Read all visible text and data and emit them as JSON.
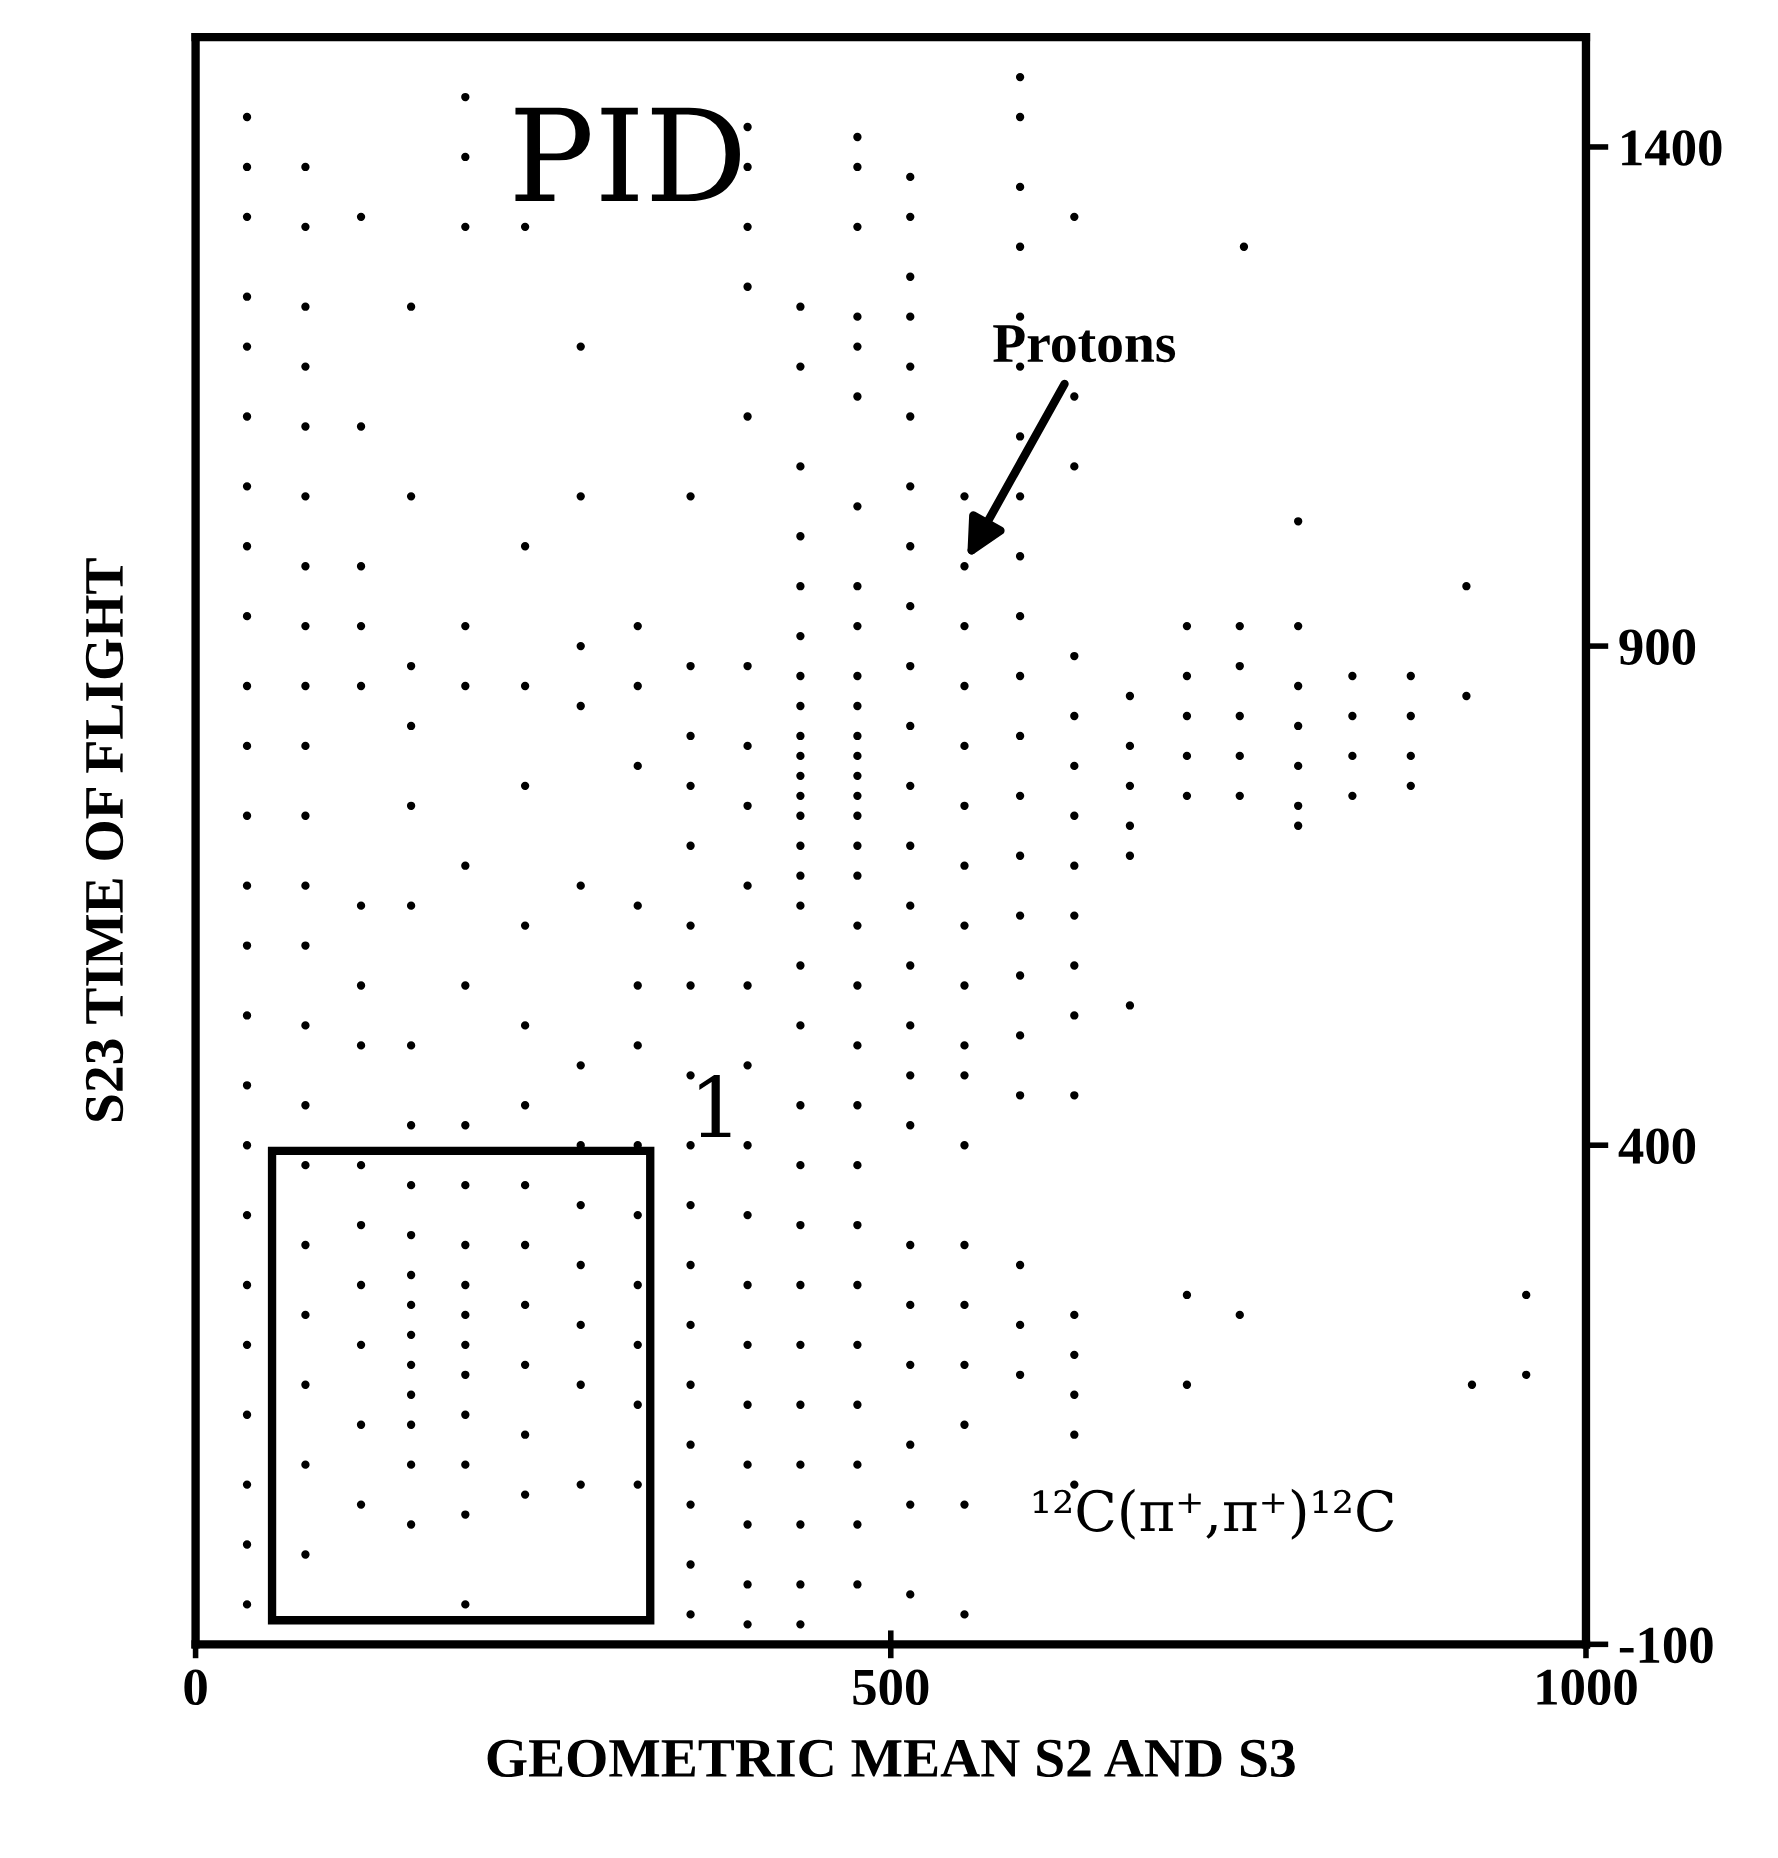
{
  "chart_data": {
    "type": "scatter",
    "xlabel": "GEOMETRIC MEAN S2 AND S3",
    "ylabel": "S23 TIME OF FLIGHT",
    "xlim": [
      0,
      1000
    ],
    "xticks": [
      0,
      500,
      1000
    ],
    "ylim": [
      -100,
      1510
    ],
    "yticks": [
      -100,
      400,
      900,
      1400
    ],
    "marker": "circle",
    "annotations": [
      "PID",
      "1",
      {
        "text": "Protons",
        "x": 553,
        "y": 983
      },
      "¹²C(π⁺,π⁺)¹²C"
    ],
    "series": [
      {
        "color": "#000000",
        "x": [
          37,
          37,
          37,
          37,
          37,
          37,
          37,
          37,
          37,
          37,
          37,
          37,
          37,
          37,
          37,
          37,
          37,
          37,
          37,
          37,
          37,
          37,
          37,
          37,
          79,
          79,
          79,
          79,
          79,
          79,
          79,
          79,
          79,
          79,
          79,
          79,
          79,
          79,
          79,
          79,
          79,
          79,
          79,
          79,
          79,
          119,
          119,
          119,
          119,
          119,
          119,
          119,
          119,
          119,
          119,
          119,
          119,
          119,
          119,
          155,
          155,
          155,
          155,
          155,
          155,
          155,
          155,
          155,
          155,
          155,
          155,
          155,
          155,
          155,
          155,
          155,
          155,
          194,
          194,
          194,
          194,
          194,
          194,
          194,
          194,
          194,
          194,
          194,
          194,
          194,
          194,
          194,
          194,
          194,
          194,
          237,
          237,
          237,
          237,
          237,
          237,
          237,
          237,
          237,
          237,
          237,
          237,
          237,
          277,
          277,
          277,
          277,
          277,
          277,
          277,
          277,
          277,
          277,
          277,
          277,
          318,
          318,
          318,
          318,
          318,
          318,
          318,
          318,
          318,
          318,
          318,
          318,
          356,
          356,
          356,
          356,
          356,
          356,
          356,
          356,
          356,
          356,
          356,
          356,
          356,
          356,
          356,
          356,
          356,
          397,
          397,
          397,
          397,
          397,
          397,
          397,
          397,
          397,
          397,
          397,
          397,
          397,
          397,
          397,
          397,
          397,
          397,
          397,
          397,
          435,
          435,
          435,
          435,
          435,
          435,
          435,
          435,
          435,
          435,
          435,
          435,
          435,
          435,
          435,
          435,
          435,
          435,
          435,
          435,
          435,
          435,
          435,
          435,
          435,
          435,
          435,
          435,
          476,
          476,
          476,
          476,
          476,
          476,
          476,
          476,
          476,
          476,
          476,
          476,
          476,
          476,
          476,
          476,
          476,
          476,
          476,
          476,
          476,
          476,
          476,
          476,
          476,
          476,
          476,
          476,
          476,
          476,
          514,
          514,
          514,
          514,
          514,
          514,
          514,
          514,
          514,
          514,
          514,
          514,
          514,
          514,
          514,
          514,
          514,
          514,
          514,
          514,
          514,
          514,
          514,
          514,
          553,
          553,
          553,
          553,
          553,
          553,
          553,
          553,
          553,
          553,
          553,
          553,
          553,
          553,
          553,
          553,
          553,
          553,
          593,
          593,
          593,
          593,
          593,
          593,
          593,
          593,
          593,
          593,
          593,
          593,
          593,
          593,
          593,
          593,
          593,
          593,
          593,
          593,
          593,
          632,
          632,
          632,
          632,
          632,
          632,
          632,
          632,
          632,
          632,
          632,
          632,
          632,
          632,
          632,
          632,
          632,
          672,
          672,
          672,
          672,
          672,
          672,
          713,
          713,
          713,
          713,
          713,
          713,
          713,
          751,
          751,
          751,
          751,
          751,
          751,
          754,
          793,
          793,
          793,
          793,
          793,
          793,
          793,
          832,
          832,
          832,
          832,
          874,
          874,
          874,
          874,
          914,
          914,
          918,
          957,
          957
        ],
        "values": [
          1430,
          1380,
          1330,
          1250,
          1200,
          1130,
          1060,
          1000,
          930,
          860,
          800,
          730,
          660,
          600,
          530,
          460,
          400,
          330,
          260,
          200,
          130,
          60,
          0,
          -60,
          1380,
          1320,
          1240,
          1180,
          1120,
          1050,
          980,
          920,
          860,
          800,
          730,
          660,
          600,
          520,
          440,
          380,
          300,
          230,
          160,
          80,
          -10,
          1330,
          1120,
          980,
          920,
          860,
          640,
          560,
          500,
          380,
          320,
          260,
          200,
          120,
          40,
          1240,
          1050,
          880,
          820,
          740,
          640,
          500,
          420,
          360,
          310,
          270,
          240,
          210,
          180,
          150,
          120,
          80,
          20,
          1450,
          1390,
          1320,
          920,
          860,
          680,
          560,
          420,
          360,
          300,
          260,
          230,
          200,
          170,
          130,
          80,
          30,
          -60,
          1320,
          1000,
          860,
          760,
          620,
          520,
          440,
          360,
          300,
          240,
          180,
          110,
          50,
          1200,
          1050,
          900,
          840,
          660,
          480,
          400,
          340,
          280,
          220,
          160,
          60,
          920,
          860,
          780,
          640,
          560,
          500,
          400,
          330,
          260,
          200,
          140,
          60,
          1050,
          880,
          810,
          760,
          700,
          620,
          560,
          470,
          400,
          340,
          280,
          220,
          160,
          100,
          40,
          -20,
          -70,
          1420,
          1380,
          1320,
          1260,
          1130,
          880,
          800,
          740,
          660,
          560,
          480,
          400,
          330,
          260,
          200,
          140,
          80,
          20,
          -40,
          -80,
          1240,
          1180,
          1080,
          1010,
          960,
          910,
          870,
          840,
          810,
          790,
          770,
          750,
          730,
          700,
          670,
          640,
          580,
          520,
          440,
          380,
          320,
          260,
          200,
          140,
          80,
          20,
          -40,
          -80,
          1410,
          1380,
          1320,
          1230,
          1200,
          1150,
          1040,
          960,
          920,
          870,
          840,
          810,
          790,
          770,
          750,
          730,
          700,
          670,
          620,
          560,
          500,
          440,
          380,
          320,
          260,
          200,
          140,
          80,
          20,
          -40,
          1370,
          1330,
          1270,
          1230,
          1180,
          1130,
          1060,
          1000,
          940,
          880,
          820,
          760,
          700,
          640,
          580,
          520,
          470,
          420,
          300,
          240,
          180,
          100,
          40,
          -50,
          1050,
          980,
          920,
          860,
          800,
          740,
          680,
          620,
          560,
          500,
          470,
          400,
          300,
          240,
          180,
          120,
          40,
          -70,
          1470,
          1430,
          1360,
          1300,
          1230,
          1180,
          1110,
          1050,
          990,
          930,
          870,
          810,
          750,
          690,
          630,
          570,
          510,
          450,
          280,
          220,
          170,
          1330,
          1150,
          1080,
          890,
          830,
          780,
          730,
          680,
          630,
          580,
          530,
          450,
          230,
          190,
          150,
          110,
          60,
          850,
          800,
          760,
          720,
          690,
          540,
          920,
          870,
          830,
          790,
          750,
          250,
          160,
          920,
          880,
          830,
          790,
          750,
          230,
          1300,
          1025,
          920,
          860,
          820,
          780,
          740,
          720,
          870,
          830,
          790,
          750,
          870,
          830,
          790,
          760,
          960,
          850,
          160,
          250,
          170
        ]
      }
    ]
  }
}
